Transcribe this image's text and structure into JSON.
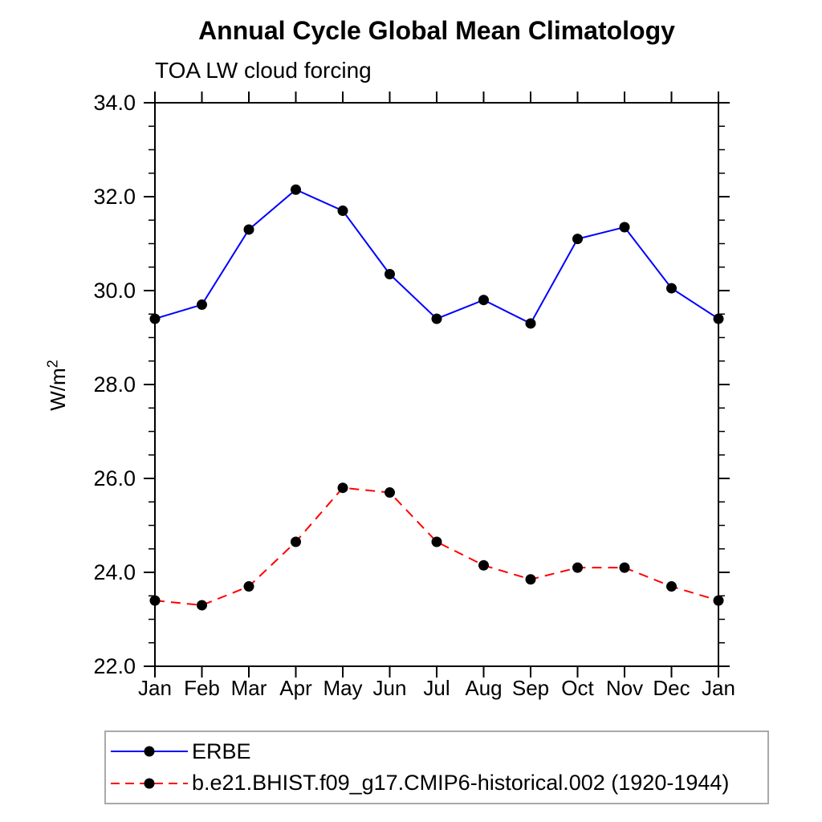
{
  "page": {
    "background": "#ffffff"
  },
  "chart_data": {
    "type": "line",
    "title": "Annual Cycle Global Mean Climatology",
    "subtitle": "TOA LW cloud forcing",
    "ylabel_base": "W/m",
    "ylabel_exponent": "2",
    "categories": [
      "Jan",
      "Feb",
      "Mar",
      "Apr",
      "May",
      "Jun",
      "Jul",
      "Aug",
      "Sep",
      "Oct",
      "Nov",
      "Dec",
      "Jan"
    ],
    "ylim": [
      22.0,
      34.0
    ],
    "y_ticks": [
      22.0,
      24.0,
      26.0,
      28.0,
      30.0,
      32.0,
      34.0
    ],
    "y_tick_labels": [
      "22.0",
      "24.0",
      "26.0",
      "28.0",
      "30.0",
      "32.0",
      "34.0"
    ],
    "y_minor_step": 0.5,
    "grid": false,
    "legend_position": "bottom-left-box",
    "axis_color": "#000000",
    "marker": "filled-circle",
    "marker_color": "#000000",
    "series": [
      {
        "name": "ERBE",
        "color": "#0000ff",
        "line_style": "solid",
        "values": [
          29.4,
          29.7,
          31.3,
          32.15,
          31.7,
          30.35,
          29.4,
          29.8,
          29.3,
          31.1,
          31.35,
          30.05,
          29.4
        ]
      },
      {
        "name": "b.e21.BHIST.f09_g17.CMIP6-historical.002 (1920-1944)",
        "color": "#ff0000",
        "line_style": "dashed",
        "values": [
          23.4,
          23.3,
          23.7,
          24.65,
          25.8,
          25.7,
          24.65,
          24.15,
          23.85,
          24.1,
          24.1,
          23.7,
          23.4
        ]
      }
    ]
  }
}
